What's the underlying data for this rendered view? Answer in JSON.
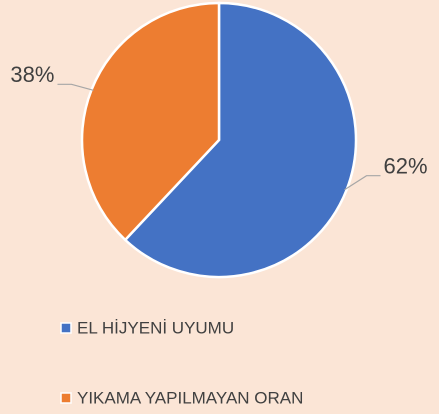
{
  "chart_data": {
    "type": "pie",
    "categories": [
      "EL HİJYENİ UYUMU",
      "YIKAMA YAPILMAYAN ORAN"
    ],
    "values": [
      62,
      38
    ],
    "value_labels": [
      "62%",
      "38%"
    ],
    "colors": [
      "#4472c4",
      "#ed7d31"
    ],
    "legend": "bottom"
  }
}
